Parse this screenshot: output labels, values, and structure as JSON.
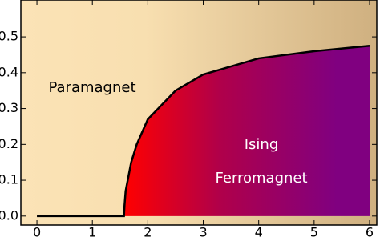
{
  "chart_data": {
    "type": "line",
    "x": [
      0,
      1.57,
      1.58,
      1.6,
      1.7,
      1.8,
      2,
      2.5,
      3,
      4,
      5,
      6
    ],
    "y": [
      0,
      0,
      0.03,
      0.07,
      0.15,
      0.2,
      0.27,
      0.35,
      0.395,
      0.44,
      0.46,
      0.475
    ],
    "color": "#000000",
    "xlim": [
      -0.29,
      6.13
    ],
    "ylim": [
      -0.025,
      0.603
    ],
    "xticks": [
      0,
      1,
      2,
      3,
      4,
      5,
      6
    ],
    "yticks": [
      {
        "value": 0,
        "label": "0.0"
      },
      0.1,
      0.2,
      0.3,
      0.4,
      0.5
    ],
    "annotations": [
      "Paramagnet",
      "Ising",
      "Ferromagnet"
    ]
  }
}
